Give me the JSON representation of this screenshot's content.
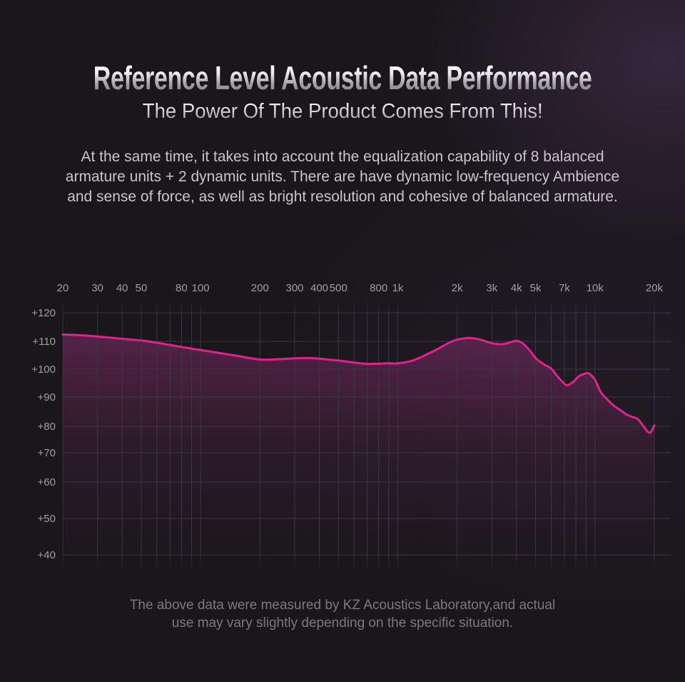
{
  "header": {
    "title": "Reference Level Acoustic Data Performance",
    "subtitle": "The Power Of The Product Comes From This!"
  },
  "description": {
    "lines": [
      "At the same time, it takes into account the equalization capability of 8 balanced",
      "armature units + 2 dynamic units. There are have dynamic low-frequency Ambience",
      "and sense of force, as well as bright resolution and cohesive of balanced armature."
    ]
  },
  "footer": {
    "lines": [
      "The above data were measured by KZ Acoustics Laboratory,and actual",
      "use may vary slightly depending on the specific situation."
    ]
  },
  "chart_data": {
    "type": "line",
    "title": "",
    "x_axis": {
      "scale": "log",
      "unit": "Hz",
      "range": [
        20,
        20000
      ],
      "ticks": [
        {
          "label": "20",
          "value": 20
        },
        {
          "label": "30",
          "value": 30
        },
        {
          "label": "40",
          "value": 40
        },
        {
          "label": "50",
          "value": 50
        },
        {
          "label": "80",
          "value": 80
        },
        {
          "label": "100",
          "value": 100
        },
        {
          "label": "200",
          "value": 200
        },
        {
          "label": "300",
          "value": 300
        },
        {
          "label": "400",
          "value": 400
        },
        {
          "label": "500",
          "value": 500
        },
        {
          "label": "800",
          "value": 800
        },
        {
          "label": "1k",
          "value": 1000
        },
        {
          "label": "2k",
          "value": 2000
        },
        {
          "label": "3k",
          "value": 3000
        },
        {
          "label": "4k",
          "value": 4000
        },
        {
          "label": "5k",
          "value": 5000
        },
        {
          "label": "7k",
          "value": 7000
        },
        {
          "label": "10k",
          "value": 10000
        },
        {
          "label": "20k",
          "value": 20000
        }
      ],
      "gridlines": [
        20,
        30,
        40,
        50,
        60,
        70,
        80,
        90,
        100,
        200,
        300,
        400,
        500,
        600,
        700,
        800,
        900,
        1000,
        2000,
        3000,
        4000,
        5000,
        6000,
        7000,
        8000,
        9000,
        10000,
        20000
      ]
    },
    "y_axis": {
      "unit": "dB",
      "range": [
        40,
        120
      ],
      "ticks": [
        {
          "label": "+120",
          "value": 120
        },
        {
          "label": "+110",
          "value": 110
        },
        {
          "label": "+100",
          "value": 100
        },
        {
          "label": "+90",
          "value": 90
        },
        {
          "label": "+80",
          "value": 80
        },
        {
          "label": "+70",
          "value": 70
        },
        {
          "label": "+60",
          "value": 60
        },
        {
          "label": "+50",
          "value": 50
        },
        {
          "label": "+40",
          "value": 40
        }
      ]
    },
    "style": {
      "line_color": "#e3218c",
      "area_color": "#b23691",
      "grid_color": "#3b3641",
      "label_color": "#a09da5"
    },
    "legend": null,
    "series": [
      {
        "name": "frequency-response",
        "points": [
          [
            20,
            112.4
          ],
          [
            25,
            112.1
          ],
          [
            30,
            111.7
          ],
          [
            40,
            110.9
          ],
          [
            50,
            110.3
          ],
          [
            60,
            109.5
          ],
          [
            70,
            108.7
          ],
          [
            80,
            108.0
          ],
          [
            90,
            107.4
          ],
          [
            100,
            106.9
          ],
          [
            120,
            106.0
          ],
          [
            150,
            104.9
          ],
          [
            200,
            103.5
          ],
          [
            250,
            103.6
          ],
          [
            300,
            103.9
          ],
          [
            350,
            104.0
          ],
          [
            400,
            103.8
          ],
          [
            500,
            103.1
          ],
          [
            600,
            102.4
          ],
          [
            700,
            101.9
          ],
          [
            800,
            102.0
          ],
          [
            900,
            102.1
          ],
          [
            1000,
            102.1
          ],
          [
            1200,
            103.2
          ],
          [
            1500,
            106.3
          ],
          [
            1800,
            109.3
          ],
          [
            2000,
            110.6
          ],
          [
            2300,
            111.2
          ],
          [
            2600,
            110.7
          ],
          [
            3000,
            109.3
          ],
          [
            3400,
            109.0
          ],
          [
            3700,
            109.6
          ],
          [
            4000,
            110.2
          ],
          [
            4300,
            109.3
          ],
          [
            4700,
            106.5
          ],
          [
            5000,
            104.0
          ],
          [
            5500,
            101.8
          ],
          [
            6000,
            100.2
          ],
          [
            6500,
            97.2
          ],
          [
            7000,
            94.8
          ],
          [
            7300,
            94.3
          ],
          [
            7800,
            95.6
          ],
          [
            8300,
            97.5
          ],
          [
            9000,
            98.5
          ],
          [
            9400,
            98.3
          ],
          [
            10000,
            96.2
          ],
          [
            10700,
            91.8
          ],
          [
            11500,
            89.3
          ],
          [
            12500,
            87.0
          ],
          [
            13500,
            85.5
          ],
          [
            14500,
            84.0
          ],
          [
            15500,
            83.2
          ],
          [
            16500,
            82.5
          ],
          [
            17500,
            80.3
          ],
          [
            18500,
            78.0
          ],
          [
            19200,
            77.8
          ],
          [
            20000,
            80.3
          ]
        ]
      }
    ]
  }
}
